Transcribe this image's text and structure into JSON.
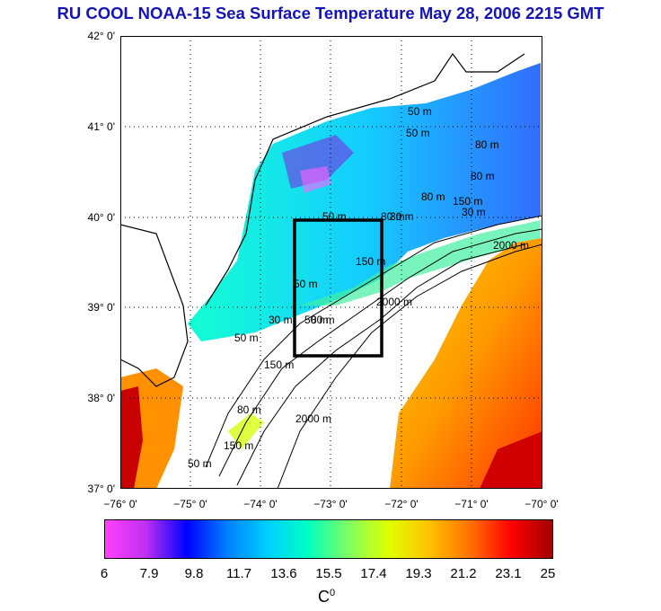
{
  "title": "RU COOL  NOAA-15 Sea Surface Temperature May 28, 2006 2215 GMT",
  "axes": {
    "lat_labels": [
      "42° 0'",
      "41° 0'",
      "40° 0'",
      "39° 0'",
      "38° 0'",
      "37° 0'"
    ],
    "lon_labels": [
      "−76° 0'",
      "−75° 0'",
      "−74° 0'",
      "−73° 0'",
      "−72° 0'",
      "−71° 0'",
      "−70° 0'"
    ]
  },
  "colorbar": {
    "ticks": [
      "6",
      "7.9",
      "9.8",
      "11.7",
      "13.6",
      "15.5",
      "17.4",
      "19.3",
      "21.2",
      "23.1",
      "25"
    ],
    "unit_base": "C",
    "unit_sup": "0",
    "colors": [
      "#ff40ff",
      "#c030f0",
      "#0000ff",
      "#0080ff",
      "#00d0ff",
      "#00ffc0",
      "#80ff60",
      "#e0ff00",
      "#ffc000",
      "#ff7000",
      "#ff0000",
      "#a00000"
    ]
  },
  "contour_labels": [
    "50 m",
    "50 m",
    "80 m",
    "80 m",
    "30 m",
    "80 m",
    "150 m",
    "30 m",
    "50 m",
    "80 m",
    "150 m",
    "2000 m",
    "50 m",
    "30 m",
    "50 m",
    "80 m",
    "2000 m",
    "50 m",
    "150 m",
    "80 m",
    "2000 m",
    "150 m",
    "50 m"
  ],
  "study_box": {
    "lon_min": -73.45,
    "lon_max": -72.45,
    "lat_min": 38.5,
    "lat_max": 40.0
  },
  "map_extent": {
    "lon_min": -76,
    "lon_max": -70,
    "lat_min": 37,
    "lat_max": 42
  }
}
